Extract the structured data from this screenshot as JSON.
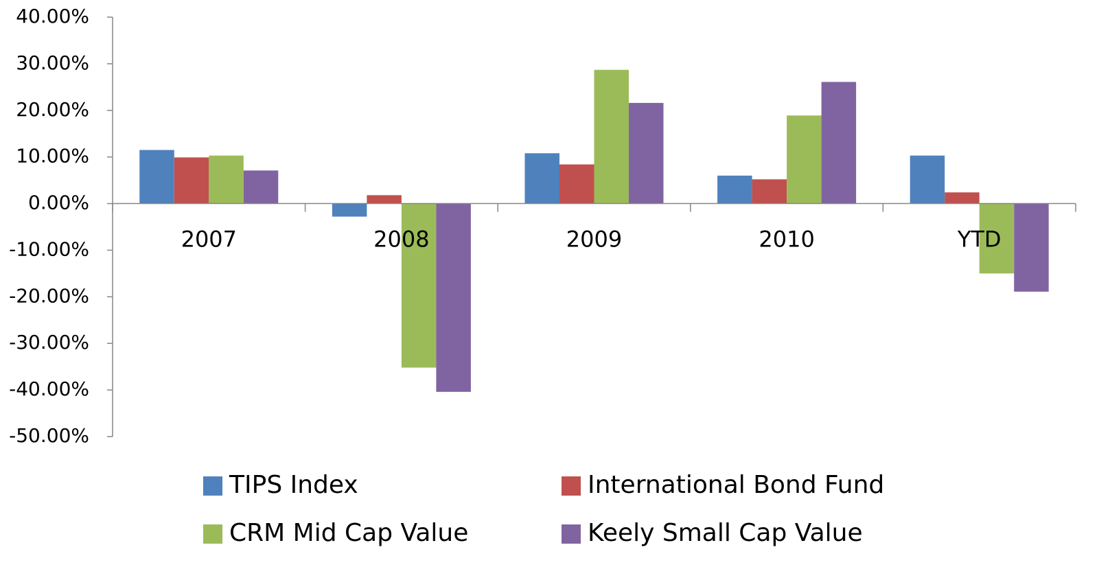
{
  "chart_data": {
    "type": "bar",
    "categories": [
      "2007",
      "2008",
      "2009",
      "2010",
      "YTD"
    ],
    "series": [
      {
        "name": "TIPS Index",
        "color": "#4f81bd",
        "values": [
          11.5,
          -2.8,
          10.8,
          6.0,
          10.3
        ]
      },
      {
        "name": "International Bond Fund",
        "color": "#c0504d",
        "values": [
          9.9,
          1.8,
          8.4,
          5.2,
          2.4
        ]
      },
      {
        "name": "CRM Mid Cap Value",
        "color": "#9bbb59",
        "values": [
          10.3,
          -35.2,
          28.7,
          18.9,
          -15.0
        ]
      },
      {
        "name": "Keely Small Cap Value",
        "color": "#8064a2",
        "values": [
          7.1,
          -40.4,
          21.6,
          26.1,
          -18.9
        ]
      }
    ],
    "ylim": [
      -50,
      40
    ],
    "yticks": [
      {
        "value": -50,
        "label": "-50.00%"
      },
      {
        "value": -40,
        "label": "-40.00%"
      },
      {
        "value": -30,
        "label": "-30.00%"
      },
      {
        "value": -20,
        "label": "-20.00%"
      },
      {
        "value": -10,
        "label": "-10.00%"
      },
      {
        "value": 0,
        "label": "0.00%"
      },
      {
        "value": 10,
        "label": "10.00%"
      },
      {
        "value": 20,
        "label": "20.00%"
      },
      {
        "value": 30,
        "label": "30.00%"
      },
      {
        "value": 40,
        "label": "40.00%"
      }
    ],
    "grid": false,
    "legend": "bottom"
  }
}
